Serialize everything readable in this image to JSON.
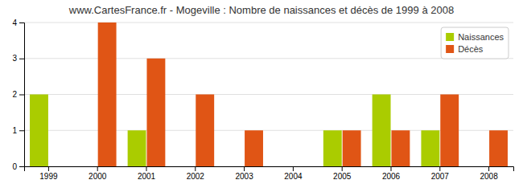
{
  "chart_data": {
    "type": "bar",
    "title": "www.CartesFrance.fr - Mogeville : Nombre de naissances et décès de 1999 à 2008",
    "categories": [
      "1999",
      "2000",
      "2001",
      "2002",
      "2003",
      "2004",
      "2005",
      "2006",
      "2007",
      "2008"
    ],
    "series": [
      {
        "name": "Naissances",
        "color": "#aacc00",
        "values": [
          2,
          0,
          1,
          0,
          0,
          0,
          1,
          2,
          1,
          0
        ]
      },
      {
        "name": "Décès",
        "color": "#e05515",
        "values": [
          0,
          4,
          3,
          2,
          1,
          0,
          1,
          1,
          2,
          1
        ]
      }
    ],
    "ylim": [
      0,
      4
    ],
    "yticks": [
      0,
      1,
      2,
      3,
      4
    ],
    "grid": true,
    "legend": "upper-right"
  }
}
